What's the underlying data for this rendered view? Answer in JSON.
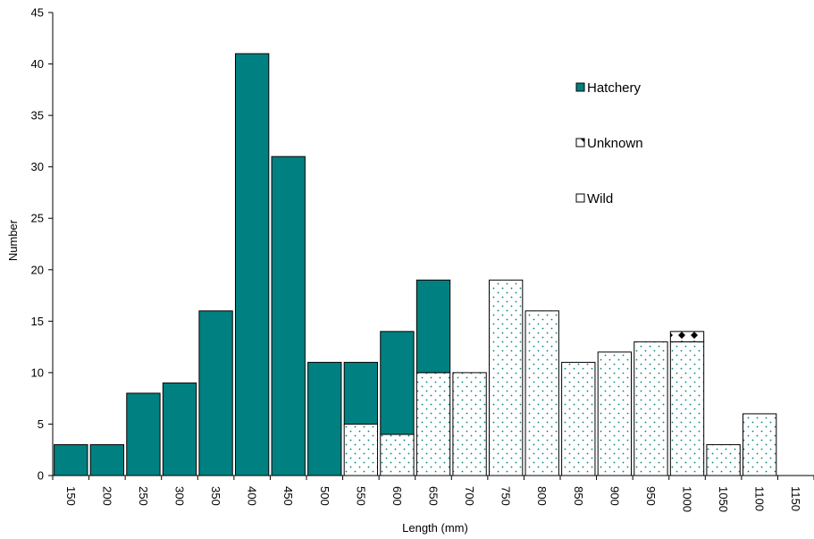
{
  "chart_data": {
    "type": "bar",
    "stacked": true,
    "categories": [
      "150",
      "200",
      "250",
      "300",
      "350",
      "400",
      "450",
      "500",
      "550",
      "600",
      "650",
      "700",
      "750",
      "800",
      "850",
      "900",
      "950",
      "1000",
      "1050",
      "1100",
      "1150"
    ],
    "series": [
      {
        "name": "Wild",
        "color": "#ffffff",
        "pattern": "teal-dots",
        "values": [
          0,
          0,
          0,
          0,
          0,
          0,
          0,
          0,
          5,
          4,
          10,
          10,
          19,
          16,
          11,
          12,
          13,
          13,
          3,
          6,
          0
        ]
      },
      {
        "name": "Unknown",
        "color": "#ffffff",
        "pattern": "black-diamonds",
        "values": [
          0,
          0,
          0,
          0,
          0,
          0,
          0,
          0,
          0,
          0,
          0,
          0,
          0,
          0,
          0,
          0,
          0,
          1,
          0,
          0,
          0
        ]
      },
      {
        "name": "Hatchery",
        "color": "#008080",
        "values": [
          3,
          3,
          8,
          9,
          16,
          41,
          31,
          11,
          6,
          10,
          9,
          0,
          0,
          0,
          0,
          0,
          0,
          0,
          0,
          0,
          0
        ]
      }
    ],
    "xlabel": "Length (mm)",
    "ylabel": "Number",
    "ylim": [
      0,
      45
    ],
    "yticks": [
      0,
      5,
      10,
      15,
      20,
      25,
      30,
      35,
      40,
      45
    ],
    "grid": false,
    "legend": {
      "placement": "right",
      "entries": [
        "Hatchery",
        "Unknown",
        "Wild"
      ]
    }
  }
}
